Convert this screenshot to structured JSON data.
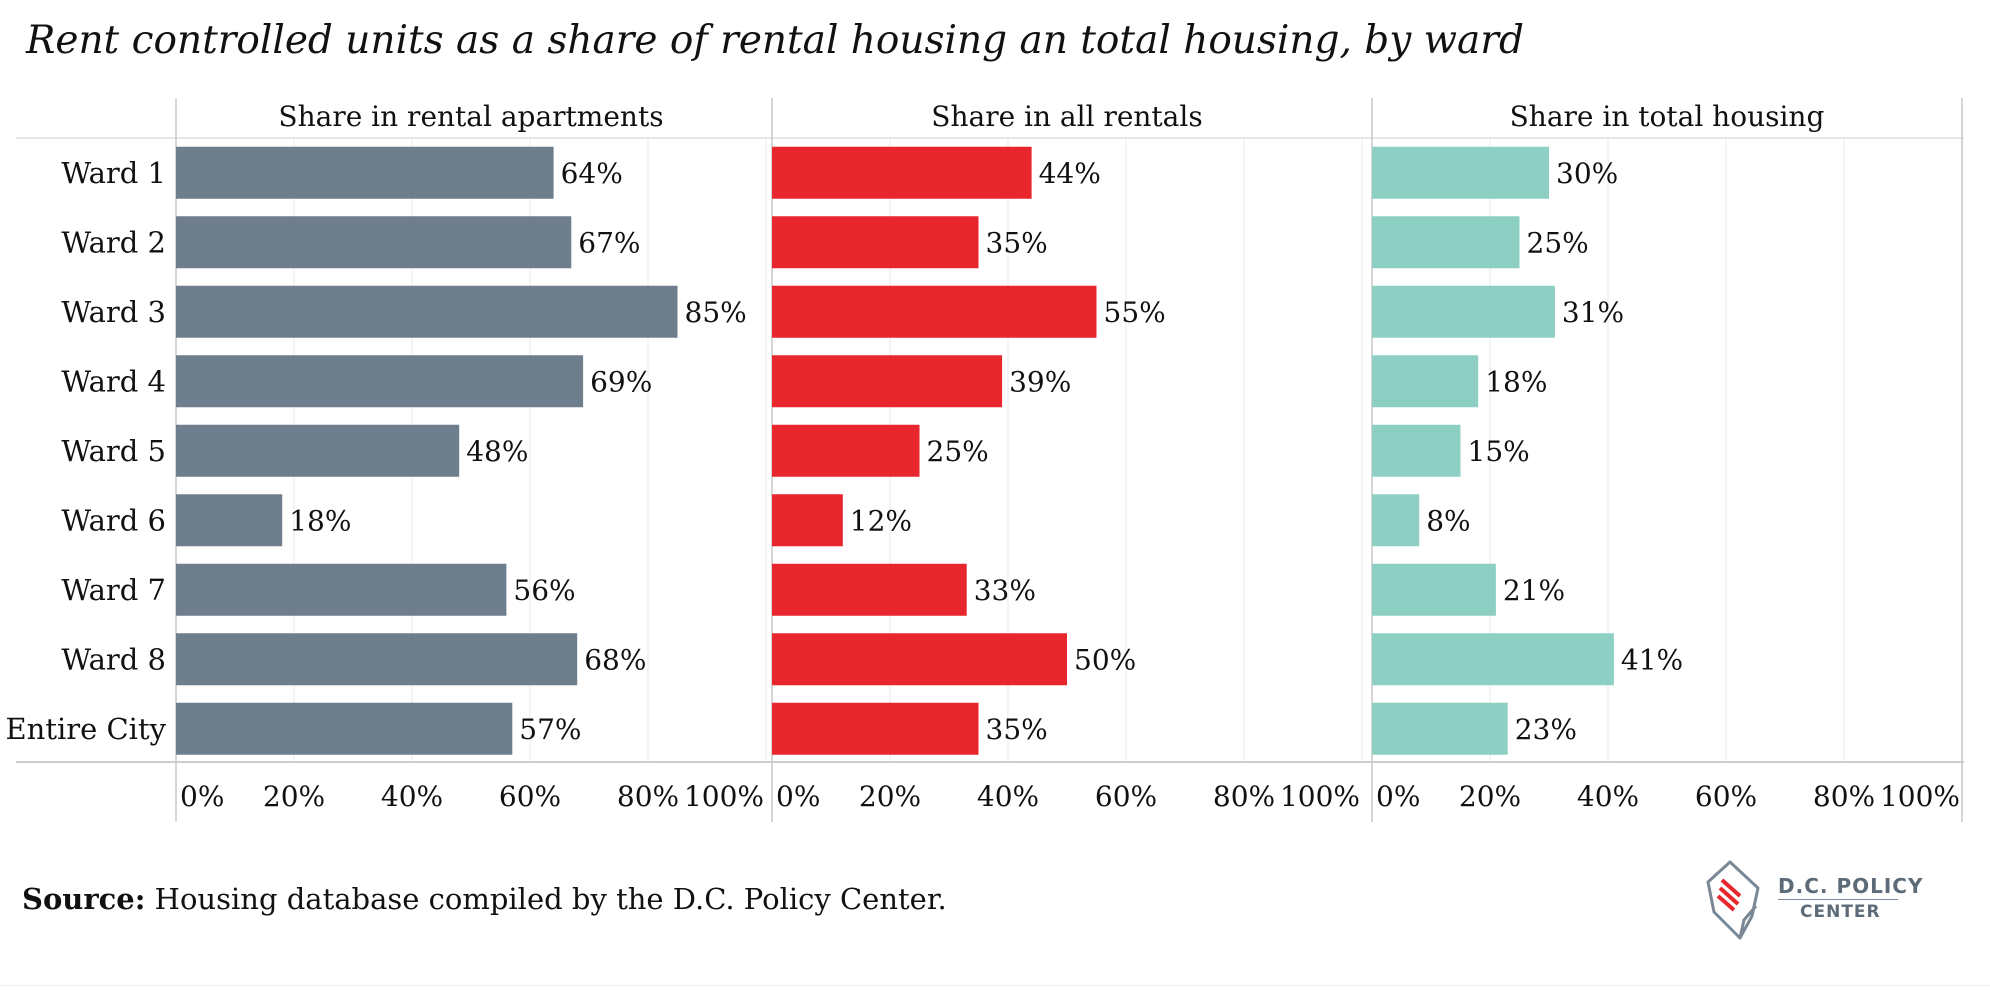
{
  "title": "Rent controlled units as a share of rental housing an total housing, by ward",
  "source": {
    "label": "Source:",
    "text": " Housing database compiled by the D.C. Policy Center."
  },
  "logo": {
    "line1": "D.C. POLICY",
    "line2": "CENTER"
  },
  "chart_data": {
    "type": "bar",
    "orientation": "horizontal",
    "categories": [
      "Ward 1",
      "Ward 2",
      "Ward 3",
      "Ward 4",
      "Ward 5",
      "Ward 6",
      "Ward 7",
      "Ward 8",
      "Entire City"
    ],
    "xlim": [
      0,
      100
    ],
    "x_ticks": [
      "0%",
      "20%",
      "40%",
      "60%",
      "80%",
      "100%"
    ],
    "grid": true,
    "panels": [
      {
        "name": "Share in rental apartments",
        "color": "#6e7e8d",
        "values": [
          64,
          67,
          85,
          69,
          48,
          18,
          56,
          68,
          57
        ],
        "labels": [
          "64%",
          "67%",
          "85%",
          "69%",
          "48%",
          "18%",
          "56%",
          "68%",
          "57%"
        ]
      },
      {
        "name": "Share in all rentals",
        "color": "#e8262d",
        "values": [
          44,
          35,
          55,
          39,
          25,
          12,
          33,
          50,
          35
        ],
        "labels": [
          "44%",
          "35%",
          "55%",
          "39%",
          "25%",
          "12%",
          "33%",
          "50%",
          "35%"
        ]
      },
      {
        "name": "Share in total housing",
        "color": "#8ecfc4",
        "values": [
          30,
          25,
          31,
          18,
          15,
          8,
          21,
          41,
          23
        ],
        "labels": [
          "30%",
          "25%",
          "31%",
          "18%",
          "15%",
          "8%",
          "21%",
          "41%",
          "23%"
        ]
      }
    ]
  }
}
